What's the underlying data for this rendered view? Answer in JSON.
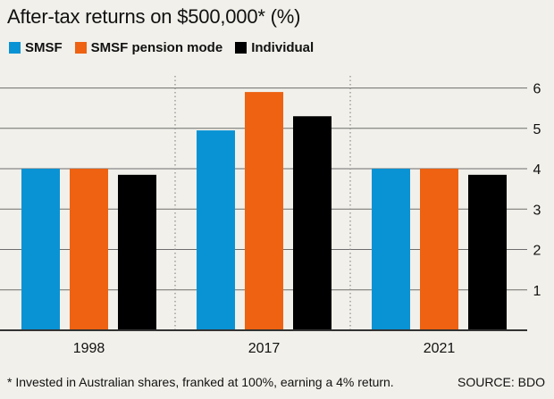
{
  "chart_data": {
    "type": "bar",
    "title": "After-tax returns on $500,000* (%)",
    "categories": [
      "1998",
      "2017",
      "2021"
    ],
    "series": [
      {
        "name": "SMSF",
        "color": "#0a93d4",
        "values": [
          4.0,
          4.95,
          4.0
        ]
      },
      {
        "name": "SMSF pension mode",
        "color": "#ee6211",
        "values": [
          4.0,
          5.9,
          4.0
        ]
      },
      {
        "name": "Individual",
        "color": "#000000",
        "values": [
          3.85,
          5.3,
          3.85
        ]
      }
    ],
    "ylim": [
      0,
      6.3
    ],
    "yticks": [
      "1",
      "2",
      "3",
      "4",
      "5",
      "6"
    ],
    "grid": true,
    "legend_position": "top-left",
    "footnote": "* Invested in Australian shares, franked at 100%, earning a 4% return.",
    "source": "SOURCE: BDO"
  }
}
